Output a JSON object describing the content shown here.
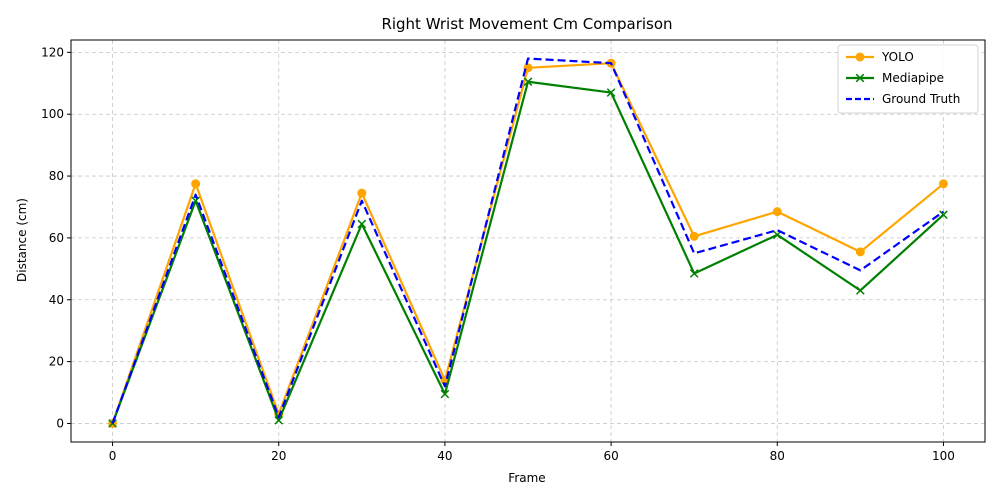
{
  "chart_data": {
    "type": "line",
    "title": "Right Wrist Movement Cm Comparison",
    "xlabel": "Frame",
    "ylabel": "Distance (cm)",
    "x": [
      0,
      10,
      20,
      30,
      40,
      50,
      60,
      70,
      80,
      90,
      100
    ],
    "xlim": [
      -5,
      105
    ],
    "ylim": [
      -6,
      124
    ],
    "xticks": [
      0,
      20,
      40,
      60,
      80,
      100
    ],
    "yticks": [
      0,
      20,
      40,
      60,
      80,
      100,
      120
    ],
    "grid": true,
    "legend_position": "top-right",
    "series": [
      {
        "name": "YOLO",
        "values": [
          0,
          77.5,
          3,
          74.5,
          14,
          115,
          116.5,
          60.5,
          68.5,
          55.5,
          77.5
        ],
        "color": "#ffa500",
        "marker": "circle",
        "linestyle": "solid"
      },
      {
        "name": "Mediapipe",
        "values": [
          0,
          72,
          1,
          64.5,
          9.5,
          110.5,
          107,
          48.5,
          61,
          43,
          67.5
        ],
        "color": "#008000",
        "marker": "x",
        "linestyle": "solid"
      },
      {
        "name": "Ground Truth",
        "values": [
          0,
          74,
          2,
          72,
          12,
          118,
          116.5,
          55,
          62.5,
          49.5,
          68.5
        ],
        "color": "#0000ff",
        "marker": "none",
        "linestyle": "dashed"
      }
    ]
  }
}
